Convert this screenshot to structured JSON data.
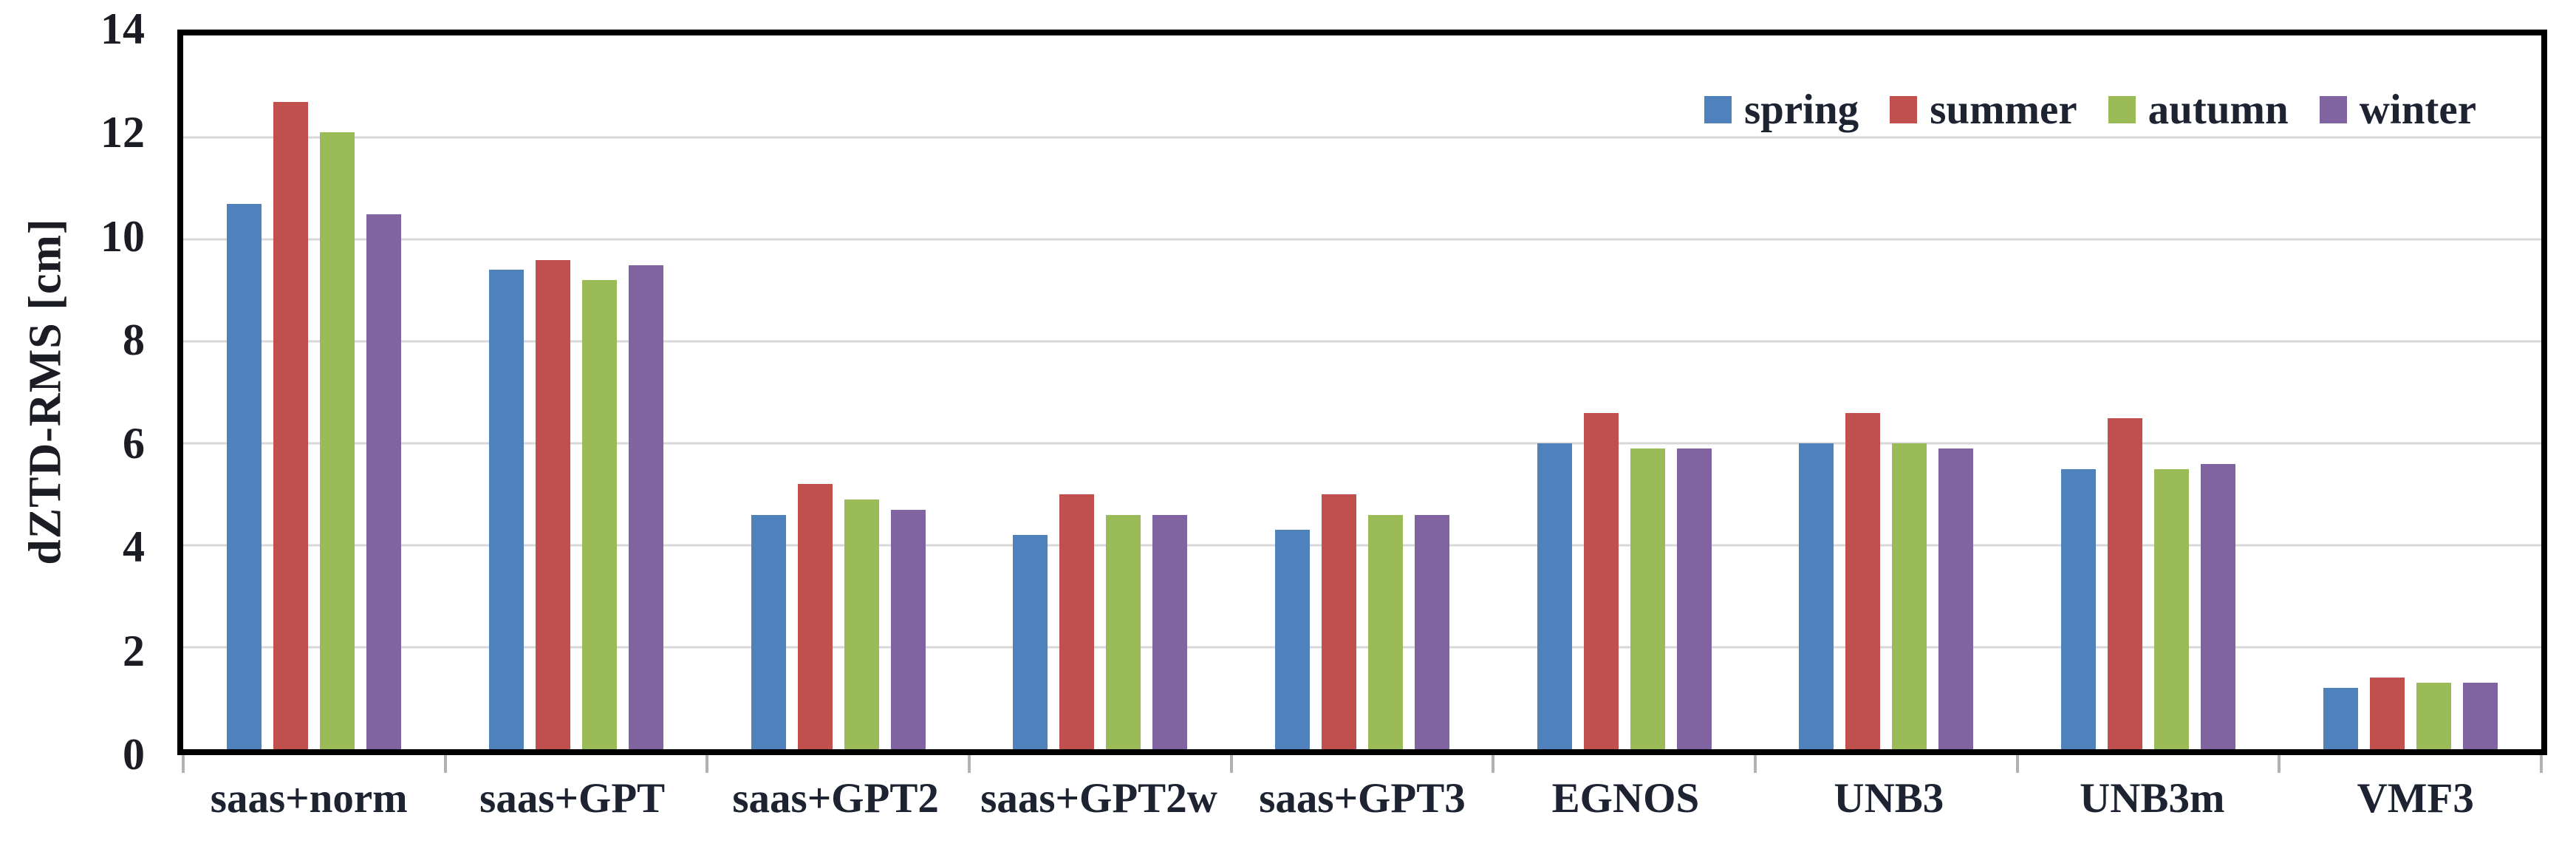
{
  "chart_data": {
    "type": "bar",
    "title": "",
    "xlabel": "",
    "ylabel": "dZTD-RMS [cm]",
    "ylim": [
      0,
      14
    ],
    "yticks": [
      0,
      2,
      4,
      6,
      8,
      10,
      12,
      14
    ],
    "grid": "horizontal-light-gray-every-2",
    "legend_position": "top-right-inside",
    "categories": [
      "saas+norm",
      "saas+GPT",
      "saas+GPT2",
      "saas+GPT2w",
      "saas+GPT3",
      "EGNOS",
      "UNB3",
      "UNB3m",
      "VMF3"
    ],
    "series": [
      {
        "name": "spring",
        "color": "#4F81BD",
        "values": [
          10.7,
          9.4,
          4.6,
          4.2,
          4.3,
          6.0,
          6.0,
          5.5,
          1.2
        ]
      },
      {
        "name": "summer",
        "color": "#C0504D",
        "values": [
          12.7,
          9.6,
          5.2,
          5.0,
          5.0,
          6.6,
          6.6,
          6.5,
          1.4
        ]
      },
      {
        "name": "autumn",
        "color": "#9BBB59",
        "values": [
          12.1,
          9.2,
          4.9,
          4.6,
          4.6,
          5.9,
          6.0,
          5.5,
          1.3
        ]
      },
      {
        "name": "winter",
        "color": "#8064A2",
        "values": [
          10.5,
          9.5,
          4.7,
          4.6,
          4.6,
          5.9,
          5.9,
          5.6,
          1.3
        ]
      }
    ]
  },
  "style_colors": {
    "axis_border": "#000000",
    "gridline": "#d8d8d8",
    "boundary_tick": "#b2b2b2",
    "text": "#1d2331",
    "background": "#ffffff"
  }
}
